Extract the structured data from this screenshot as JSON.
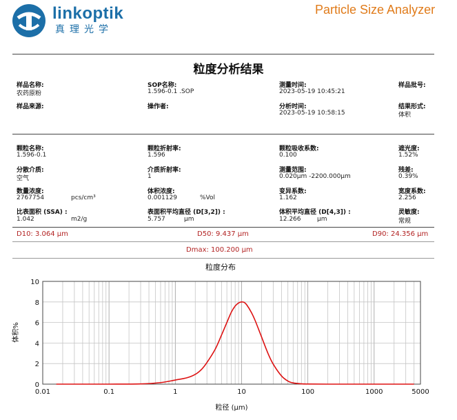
{
  "header": {
    "brand": "linkoptik",
    "brand_cn": "真理光学",
    "product": "Particle Size Analyzer",
    "report_title": "粒度分析结果",
    "colors": {
      "brand": "#1c6fa8",
      "product": "#e07b1a",
      "d_values": "#b22222",
      "curve": "#dd1111"
    }
  },
  "sample": {
    "name_label": "样品名称:",
    "name_value": "农药原粉",
    "sop_label": "SOP名称:",
    "sop_value": "1.596-0.1 .SOP",
    "measure_time_label": "测量时间:",
    "measure_time_value": "2023-05-19 10:45:21",
    "batch_label": "样品批号:",
    "batch_value": "",
    "source_label": "样品来源:",
    "source_value": "",
    "operator_label": "操作者:",
    "operator_value": "",
    "analysis_time_label": "分析时间:",
    "analysis_time_value": "2023-05-19 10:58:15",
    "result_form_label": "结果形式:",
    "result_form_value": "体积"
  },
  "params": {
    "particle_name_label": "颗粒名称:",
    "particle_name_value": "1.596-0.1",
    "refractive_label": "颗粒折射率:",
    "refractive_value": "1.596",
    "absorption_label": "颗粒吸收系数:",
    "absorption_value": "0.100",
    "obscuration_label": "遮光度:",
    "obscuration_value": "1.52%",
    "dispersant_label": "分散介质:",
    "dispersant_value": "空气",
    "medium_ri_label": "介质折射率:",
    "medium_ri_value": "1",
    "range_label": "测量范围:",
    "range_value": "0.020μm -2200.000μm",
    "residual_label": "残差:",
    "residual_value": "0.39%",
    "number_conc_label": "数量浓度:",
    "number_conc_value": "2767754",
    "number_conc_unit": "pcs/cm³",
    "volume_conc_label": "体积浓度:",
    "volume_conc_value": "0.001129",
    "volume_conc_unit": "%Vol",
    "uniformity_label": "变异系数:",
    "uniformity_value": "1.162",
    "span_label": "宽度系数:",
    "span_value": "2.256",
    "ssa_label": "比表面积 (SSA) :",
    "ssa_value": "1.042",
    "ssa_unit": "m2/g",
    "d32_label": "表面积平均直径 (D[3,2]) :",
    "d32_value": "5.757",
    "d32_unit": "μm",
    "d43_label": "体积平均直径 (D[4,3]) :",
    "d43_value": "12.266",
    "d43_unit": "μm",
    "sensitivity_label": "灵敏度:",
    "sensitivity_value": "常规"
  },
  "d_values": {
    "d10": "D10:  3.064 μm",
    "d50": "D50:  9.437 μm",
    "d90": "D90:  24.356 μm",
    "dmax": "Dmax:  100.200 μm"
  },
  "chart_data": {
    "type": "line",
    "title": "粒度分布",
    "xlabel": "粒径 (μm)",
    "ylabel": "体积%",
    "x_scale": "log",
    "xlim": [
      0.01,
      5000
    ],
    "ylim": [
      0,
      10
    ],
    "x_tick_labels": [
      "0.01",
      "0.1",
      "1",
      "10",
      "100",
      "1000",
      "5000"
    ],
    "y_tick_labels": [
      "0",
      "2",
      "4",
      "6",
      "8",
      "10"
    ],
    "grid": true,
    "legend": "none",
    "series": [
      {
        "x": [
          0.016,
          0.1,
          0.3,
          0.6,
          1.0,
          1.5,
          2.0,
          2.5,
          3.0,
          4.0,
          5.0,
          6.0,
          7.0,
          8.0,
          9.0,
          10.0,
          11.0,
          12.0,
          14.0,
          16.0,
          20.0,
          25.0,
          30.0,
          40.0,
          50.0,
          60.0,
          80.0,
          100.0,
          200.0,
          1000.0,
          4000.0
        ],
        "values": [
          0.0,
          0.0,
          0.02,
          0.15,
          0.4,
          0.62,
          0.95,
          1.45,
          2.1,
          3.4,
          4.8,
          6.0,
          7.0,
          7.6,
          7.9,
          8.0,
          7.95,
          7.7,
          7.0,
          6.2,
          4.6,
          3.0,
          1.95,
          0.8,
          0.3,
          0.12,
          0.03,
          0.01,
          0.0,
          0.0,
          0.0
        ]
      }
    ]
  }
}
